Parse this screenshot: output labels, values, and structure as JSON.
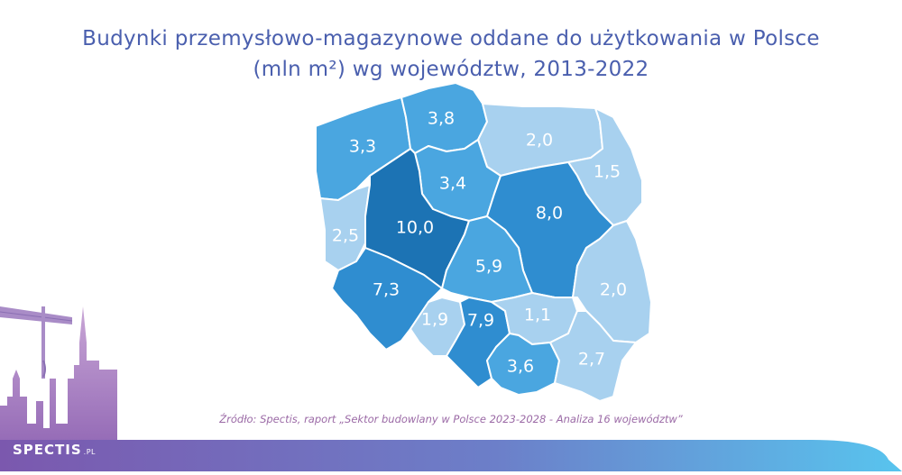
{
  "title": {
    "line1": "Budynki przemysłowo-magazynowe oddane do użytkowania w Polsce",
    "line2": "(mln m²) wg województw, 2013-2022"
  },
  "colors": {
    "title": "#4a5fae",
    "darkest": "#1c73b4",
    "dark": "#2f8dd0",
    "medium": "#4aa6e0",
    "light": "#a8d1ef",
    "source": "#9b6aa6"
  },
  "regions": [
    {
      "id": "zachodniopomorskie",
      "value": "3,3"
    },
    {
      "id": "pomorskie",
      "value": "3,8"
    },
    {
      "id": "warminsko-mazurskie",
      "value": "2,0"
    },
    {
      "id": "podlaskie",
      "value": "1,5"
    },
    {
      "id": "kujawsko-pomorskie",
      "value": "3,4"
    },
    {
      "id": "lubuskie",
      "value": "2,5"
    },
    {
      "id": "wielkopolskie",
      "value": "10,0"
    },
    {
      "id": "mazowieckie",
      "value": "8,0"
    },
    {
      "id": "lodzkie",
      "value": "5,9"
    },
    {
      "id": "dolnoslaskie",
      "value": "7,3"
    },
    {
      "id": "lubelskie",
      "value": "2,0"
    },
    {
      "id": "opolskie",
      "value": "1,9"
    },
    {
      "id": "slaskie",
      "value": "7,9"
    },
    {
      "id": "swietokrzyskie",
      "value": "1,1"
    },
    {
      "id": "malopolskie",
      "value": "3,6"
    },
    {
      "id": "podkarpackie",
      "value": "2,7"
    }
  ],
  "source": "Źródło: Spectis, raport „Sektor budowlany w Polsce 2023-2028 - Analiza 16 województw”",
  "logo": {
    "name": "SPECTIS",
    "suffix": ".PL"
  }
}
